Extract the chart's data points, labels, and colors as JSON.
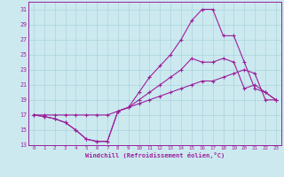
{
  "xlabel": "Windchill (Refroidissement éolien,°C)",
  "bg_color": "#cce9f0",
  "grid_color": "#aad4dc",
  "line_color": "#9b1f9b",
  "x_ticks": [
    0,
    1,
    2,
    3,
    4,
    5,
    6,
    7,
    8,
    9,
    10,
    11,
    12,
    13,
    14,
    15,
    16,
    17,
    18,
    19,
    20,
    21,
    22,
    23
  ],
  "ylim": [
    13,
    32
  ],
  "xlim": [
    -0.5,
    23.5
  ],
  "yticks": [
    13,
    15,
    17,
    19,
    21,
    23,
    25,
    27,
    29,
    31
  ],
  "line1_x": [
    0,
    1,
    2,
    3,
    4,
    5,
    6,
    7,
    8,
    9,
    10,
    11,
    12,
    13,
    14,
    15,
    16,
    17,
    18,
    19,
    20,
    21,
    22,
    23
  ],
  "line1_y": [
    17,
    17,
    17,
    17,
    17,
    17,
    17,
    17,
    17.5,
    18,
    18.5,
    19,
    19.5,
    20,
    20.5,
    21,
    21.5,
    21.5,
    22,
    22.5,
    23,
    22.5,
    19,
    19
  ],
  "line2_x": [
    0,
    1,
    2,
    3,
    4,
    5,
    6,
    7,
    8,
    9,
    10,
    11,
    12,
    13,
    14,
    15,
    16,
    17,
    18,
    19,
    20,
    21,
    22,
    23
  ],
  "line2_y": [
    17,
    16.8,
    16.5,
    16,
    15,
    13.8,
    13.5,
    13.5,
    17.5,
    18,
    19,
    20,
    21,
    22,
    23,
    24.5,
    24,
    24,
    24.5,
    24,
    20.5,
    21,
    20,
    19
  ],
  "line3_x": [
    0,
    1,
    2,
    3,
    4,
    5,
    6,
    7,
    8,
    9,
    10,
    11,
    12,
    13,
    14,
    15,
    16,
    17,
    18,
    19,
    20,
    21,
    22,
    23
  ],
  "line3_y": [
    17,
    16.8,
    16.5,
    16,
    15,
    13.8,
    13.5,
    13.5,
    17.5,
    18,
    20,
    22,
    23.5,
    25,
    27,
    29.5,
    31,
    31,
    27.5,
    27.5,
    24,
    20.5,
    20,
    19
  ]
}
